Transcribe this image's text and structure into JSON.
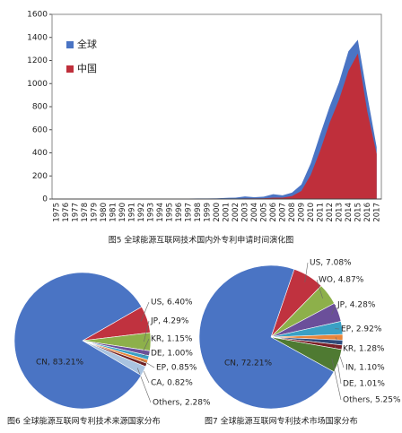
{
  "chart_data": [
    {
      "type": "area",
      "caption": "图5 全球能源互联网技术国内外专利申请时间演化图",
      "categories": [
        "1975",
        "1976",
        "1977",
        "1978",
        "1979",
        "1980",
        "1981",
        "1990",
        "1991",
        "1992",
        "1993",
        "1994",
        "1995",
        "1996",
        "1997",
        "1998",
        "1999",
        "2000",
        "2001",
        "2002",
        "2003",
        "2004",
        "2005",
        "2006",
        "2007",
        "2008",
        "2009",
        "2010",
        "2011",
        "2012",
        "2013",
        "2014",
        "2015",
        "2016",
        "2017"
      ],
      "series": [
        {
          "name": "全球",
          "color": "#4a74c4",
          "values": [
            2,
            1,
            1,
            1,
            1,
            2,
            1,
            2,
            2,
            3,
            3,
            3,
            4,
            4,
            4,
            5,
            5,
            6,
            10,
            12,
            22,
            16,
            20,
            42,
            32,
            55,
            125,
            310,
            560,
            800,
            1010,
            1280,
            1380,
            900,
            450
          ]
        },
        {
          "name": "中国",
          "color": "#bf2f3b",
          "values": [
            0,
            0,
            0,
            0,
            0,
            0,
            0,
            0,
            0,
            0,
            0,
            0,
            0,
            0,
            0,
            0,
            0,
            1,
            2,
            3,
            5,
            5,
            6,
            12,
            12,
            25,
            70,
            210,
            420,
            660,
            860,
            1110,
            1260,
            760,
            390
          ]
        }
      ],
      "ylim": [
        0,
        1600
      ],
      "yticks": [
        0,
        200,
        400,
        600,
        800,
        1000,
        1200,
        1400,
        1600
      ],
      "legend": "upper left"
    },
    {
      "type": "pie",
      "caption": "图6 全球能源互联网专利技术来源国家分布",
      "values": [
        83.21,
        6.4,
        4.29,
        1.15,
        1.0,
        0.85,
        0.82,
        2.28
      ],
      "value_labels": [
        "CN, 83.21%",
        "US, 6.40%",
        "JP, 4.29%",
        "KR, 1.15%",
        "DE, 1.00%",
        "EP, 0.85%",
        "CA, 0.82%",
        "Others, 2.28%"
      ],
      "colors": [
        "#4a74c4",
        "#c0323f",
        "#8db04a",
        "#6b4f9a",
        "#3aa0c4",
        "#e8853a",
        "#6e1f24",
        "#a9c3e0"
      ]
    },
    {
      "type": "pie",
      "caption": "图7 全球能源互联网专利技术市场国家分布",
      "values": [
        72.21,
        7.08,
        4.87,
        4.28,
        2.92,
        1.28,
        1.1,
        1.01,
        5.25
      ],
      "value_labels": [
        "CN, 72.21%",
        "US, 7.08%",
        "WO, 4.87%",
        "JP, 4.28%",
        "EP, 2.92%",
        "KR, 1.28%",
        "IN, 1.10%",
        "DE, 1.01%",
        "Others, 5.25%"
      ],
      "colors": [
        "#4a74c4",
        "#c0323f",
        "#8db04a",
        "#6b4f9a",
        "#3aa0c4",
        "#e8853a",
        "#2f4a7a",
        "#7a1f26",
        "#4f7a32"
      ]
    }
  ]
}
